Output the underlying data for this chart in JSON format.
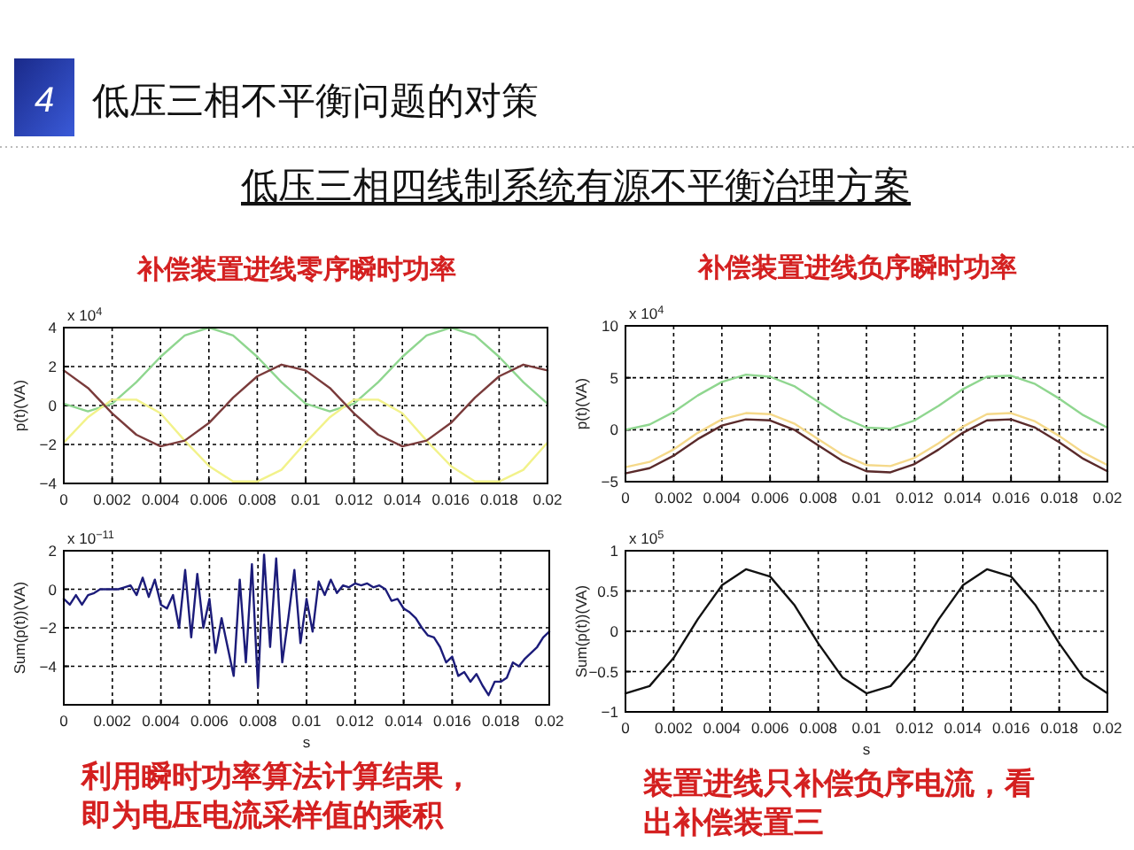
{
  "chart_data": [
    {
      "type": "other",
      "title": "低压三相四线制系统有源不平衡治理方案",
      "annotations": [
        "4",
        "低压三相不平衡问题的对策"
      ]
    },
    {
      "type": "line",
      "title": "补偿装置进线零序瞬时功率",
      "ylabel": "p(t)(VA)",
      "annotations": [
        "x 10$^{4}$"
      ],
      "grid": true,
      "x": [
        0,
        0.001,
        0.002,
        0.003,
        0.004,
        0.005,
        0.006,
        0.007,
        0.008,
        0.009,
        0.01,
        0.011,
        0.012,
        0.013,
        0.014,
        0.015,
        0.016,
        0.017,
        0.018,
        0.019,
        0.02
      ],
      "xlim": [
        0,
        0.02
      ],
      "xticks": [
        0,
        0.002,
        0.004,
        0.006,
        0.008,
        0.01,
        0.012,
        0.014,
        0.016,
        0.018,
        0.02
      ],
      "ylim": [
        -4,
        4
      ],
      "yticks": [
        -4,
        -2,
        0,
        2,
        4
      ],
      "series": [
        {
          "color": "#8fd68f",
          "values": [
            0.1,
            -0.3,
            0.1,
            1.2,
            2.5,
            3.6,
            4.0,
            3.6,
            2.5,
            1.2,
            0.1,
            -0.3,
            0.1,
            1.2,
            2.5,
            3.6,
            4.0,
            3.6,
            2.5,
            1.2,
            0.1
          ]
        },
        {
          "color": "#f2f28a",
          "values": [
            -1.9,
            -0.6,
            0.3,
            0.3,
            -0.4,
            -1.8,
            -3.1,
            -3.9,
            -3.9,
            -3.3,
            -1.9,
            -0.6,
            0.3,
            0.3,
            -0.4,
            -1.8,
            -3.1,
            -3.9,
            -3.9,
            -3.3,
            -1.9
          ]
        },
        {
          "color": "#7a3b3b",
          "values": [
            1.8,
            0.9,
            -0.4,
            -1.5,
            -2.1,
            -1.8,
            -0.9,
            0.4,
            1.5,
            2.1,
            1.8,
            0.9,
            -0.4,
            -1.5,
            -2.1,
            -1.8,
            -0.9,
            0.4,
            1.5,
            2.1,
            1.8
          ]
        }
      ]
    },
    {
      "type": "line",
      "title": "补偿装置进线负序瞬时功率",
      "ylabel": "p(t)(VA)",
      "annotations": [
        "x 10$^{4}$"
      ],
      "grid": true,
      "x": [
        0,
        0.001,
        0.002,
        0.003,
        0.004,
        0.005,
        0.006,
        0.007,
        0.008,
        0.009,
        0.01,
        0.011,
        0.012,
        0.013,
        0.014,
        0.015,
        0.016,
        0.017,
        0.018,
        0.019,
        0.02
      ],
      "xlim": [
        0,
        0.02
      ],
      "xticks": [
        0,
        0.002,
        0.004,
        0.006,
        0.008,
        0.01,
        0.012,
        0.014,
        0.016,
        0.018,
        0.02
      ],
      "ylim": [
        -5,
        10
      ],
      "yticks": [
        -5,
        0,
        5,
        10
      ],
      "series": [
        {
          "color": "#8fd68f",
          "values": [
            0,
            0.5,
            1.7,
            3.3,
            4.6,
            5.3,
            5.1,
            4.2,
            2.7,
            1.2,
            0.2,
            0.1,
            0.9,
            2.3,
            3.9,
            5.1,
            5.2,
            4.4,
            3.0,
            1.4,
            0.2
          ]
        },
        {
          "color": "#f5d98a",
          "values": [
            -3.6,
            -3.1,
            -1.9,
            -0.3,
            1.0,
            1.6,
            1.5,
            0.6,
            -0.9,
            -2.4,
            -3.4,
            -3.5,
            -2.7,
            -1.3,
            0.3,
            1.5,
            1.6,
            0.8,
            -0.6,
            -2.2,
            -3.4
          ]
        },
        {
          "color": "#5a2a2a",
          "values": [
            -4.2,
            -3.7,
            -2.5,
            -0.9,
            0.4,
            1.0,
            0.9,
            0.0,
            -1.5,
            -3.0,
            -4.0,
            -4.1,
            -3.3,
            -1.9,
            -0.3,
            0.9,
            1.0,
            0.2,
            -1.2,
            -2.8,
            -4.0
          ]
        }
      ]
    },
    {
      "type": "line",
      "xlabel": "s",
      "ylabel": "Sum(p(t))(VA)",
      "annotations": [
        "x 10$^{−11}$",
        "利用瞬时功率算法计算结果，即为电压电流采样值的乘积"
      ],
      "grid": true,
      "xlim": [
        0,
        0.02
      ],
      "xticks": [
        0,
        0.002,
        0.004,
        0.006,
        0.008,
        0.01,
        0.012,
        0.014,
        0.016,
        0.018,
        0.02
      ],
      "ylim": [
        -6,
        2
      ],
      "yticks": [
        -4,
        -2,
        0,
        2
      ],
      "series": [
        {
          "color": "#1c1c7a",
          "x": [
            0,
            0.00025,
            0.0005,
            0.00075,
            0.001,
            0.00125,
            0.0015,
            0.00175,
            0.002,
            0.00225,
            0.0025,
            0.00275,
            0.003,
            0.00325,
            0.0035,
            0.00375,
            0.004,
            0.00425,
            0.0045,
            0.00475,
            0.005,
            0.00525,
            0.0055,
            0.00575,
            0.006,
            0.00625,
            0.0065,
            0.00675,
            0.007,
            0.00725,
            0.0075,
            0.00775,
            0.008,
            0.00825,
            0.0085,
            0.00875,
            0.009,
            0.00925,
            0.0095,
            0.00975,
            0.01,
            0.01025,
            0.0105,
            0.01075,
            0.011,
            0.01125,
            0.0115,
            0.01175,
            0.012,
            0.01225,
            0.0125,
            0.01275,
            0.013,
            0.01325,
            0.0135,
            0.01375,
            0.014,
            0.01425,
            0.0145,
            0.01475,
            0.015,
            0.01525,
            0.0155,
            0.01575,
            0.016,
            0.01625,
            0.0165,
            0.01675,
            0.017,
            0.01725,
            0.0175,
            0.01775,
            0.018,
            0.01825,
            0.0185,
            0.01875,
            0.019,
            0.01925,
            0.0195,
            0.01975,
            0.02
          ],
          "values": [
            -0.5,
            -0.8,
            -0.3,
            -0.8,
            -0.3,
            -0.2,
            0,
            0,
            0,
            0,
            0.1,
            0.2,
            -0.3,
            0.6,
            -0.4,
            0.5,
            -0.8,
            -1.0,
            -0.3,
            -2.0,
            1.0,
            -2.5,
            0.8,
            -2.0,
            -0.5,
            -3.3,
            -1.5,
            -3.0,
            -4.5,
            0.5,
            -3.8,
            1.3,
            -5.1,
            1.8,
            -3.0,
            1.6,
            -3.8,
            -1.5,
            1.0,
            -2.8,
            -0.5,
            -2.2,
            0.4,
            -0.3,
            0.5,
            -0.2,
            0.2,
            0.1,
            0.3,
            0.2,
            0.3,
            0.1,
            0.2,
            0,
            -0.6,
            -0.5,
            -1.0,
            -1.2,
            -1.5,
            -2.0,
            -2.4,
            -2.5,
            -3.0,
            -3.8,
            -3.5,
            -4.5,
            -4.3,
            -4.8,
            -4.4,
            -5.0,
            -5.5,
            -4.8,
            -4.8,
            -4.6,
            -3.8,
            -4.0,
            -3.6,
            -3.3,
            -3.0,
            -2.5,
            -2.2
          ]
        }
      ]
    },
    {
      "type": "line",
      "xlabel": "s",
      "ylabel": "Sum(p(t))(VA)",
      "annotations": [
        "x 10$^{5}$",
        "装置进线只补偿负序电流，看出补偿装置三"
      ],
      "grid": true,
      "x": [
        0,
        0.001,
        0.002,
        0.003,
        0.004,
        0.005,
        0.006,
        0.007,
        0.008,
        0.009,
        0.01,
        0.011,
        0.012,
        0.013,
        0.014,
        0.015,
        0.016,
        0.017,
        0.018,
        0.019,
        0.02
      ],
      "xlim": [
        0,
        0.02
      ],
      "xticks": [
        0,
        0.002,
        0.004,
        0.006,
        0.008,
        0.01,
        0.012,
        0.014,
        0.016,
        0.018,
        0.02
      ],
      "ylim": [
        -1,
        1
      ],
      "yticks": [
        -1,
        -0.5,
        0,
        0.5,
        1
      ],
      "series": [
        {
          "color": "#111111",
          "values": [
            -0.77,
            -0.68,
            -0.33,
            0.15,
            0.57,
            0.77,
            0.68,
            0.33,
            -0.15,
            -0.57,
            -0.77,
            -0.68,
            -0.33,
            0.15,
            0.57,
            0.77,
            0.68,
            0.33,
            -0.15,
            -0.57,
            -0.77
          ]
        }
      ]
    }
  ]
}
